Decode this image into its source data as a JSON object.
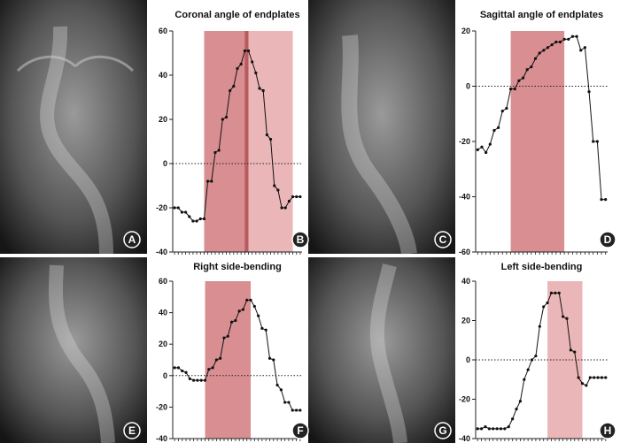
{
  "panel_letters": [
    "A",
    "B",
    "C",
    "D",
    "E",
    "F",
    "G",
    "H"
  ],
  "chart_data": [
    {
      "type": "line",
      "panel": "B",
      "title": "Coronal angle of endplates",
      "ylim": [
        -40,
        60
      ],
      "yticks": [
        "60",
        "40",
        "20",
        "0",
        "-20",
        "-40"
      ],
      "zero_line": "dotted",
      "grid": false,
      "x": [
        1,
        2,
        3,
        4,
        5,
        6,
        7,
        8,
        9,
        10,
        11,
        12,
        13,
        14,
        15,
        16,
        17,
        18,
        19,
        20,
        21,
        22,
        23,
        24,
        25,
        26,
        27,
        28,
        29,
        30,
        31,
        32,
        33,
        34,
        35
      ],
      "values": [
        -20,
        -20,
        -22,
        -22,
        -24,
        -26,
        -26,
        -25,
        -25,
        -8,
        -8,
        5,
        6,
        20,
        21,
        33,
        35,
        43,
        45,
        51,
        51,
        46,
        41,
        34,
        33,
        13,
        11,
        -10,
        -12,
        -20,
        -20,
        -17,
        -15,
        -15,
        -15
      ],
      "shaded_regions": [
        {
          "x_range": [
            9,
            21
          ],
          "color": "#d98f92"
        },
        {
          "x_range": [
            20,
            21
          ],
          "color": "#b85a5e"
        },
        {
          "x_range": [
            21,
            33
          ],
          "color": "#ebb6b8"
        }
      ]
    },
    {
      "type": "line",
      "panel": "D",
      "title": "Sagittal angle of endplates",
      "ylim": [
        -60,
        20
      ],
      "yticks": [
        "20",
        "0",
        "-20",
        "-40",
        "-60"
      ],
      "zero_line": "dotted",
      "grid": false,
      "x": [
        1,
        2,
        3,
        4,
        5,
        6,
        7,
        8,
        9,
        10,
        11,
        12,
        13,
        14,
        15,
        16,
        17,
        18,
        19,
        20,
        21,
        22,
        23,
        24,
        25,
        26,
        27,
        28,
        29,
        30,
        31,
        32
      ],
      "values": [
        -23,
        -22,
        -24,
        -21,
        -16,
        -15,
        -9,
        -8,
        -1,
        -1,
        2,
        3,
        6,
        7,
        10,
        12,
        13,
        14,
        15,
        16,
        16,
        17,
        17,
        18,
        18,
        13,
        14,
        -2,
        -20,
        -20,
        -41,
        -41
      ],
      "shaded_regions": [
        {
          "x_range": [
            9,
            22
          ],
          "color": "#d98f92"
        }
      ]
    },
    {
      "type": "line",
      "panel": "F",
      "title": "Right side-bending",
      "ylim": [
        -40,
        60
      ],
      "yticks": [
        "60",
        "40",
        "20",
        "0",
        "-20",
        "-40"
      ],
      "zero_line": "dotted",
      "grid": false,
      "x": [
        1,
        2,
        3,
        4,
        5,
        6,
        7,
        8,
        9,
        10,
        11,
        12,
        13,
        14,
        15,
        16,
        17,
        18,
        19,
        20,
        21,
        22,
        23,
        24,
        25,
        26,
        27,
        28,
        29,
        30,
        31,
        32,
        33,
        34
      ],
      "values": [
        5,
        5,
        3,
        2,
        -2,
        -3,
        -3,
        -3,
        -3,
        4,
        5,
        10,
        11,
        24,
        25,
        34,
        35,
        41,
        42,
        48,
        48,
        44,
        38,
        30,
        29,
        11,
        10,
        -6,
        -9,
        -17,
        -17,
        -22,
        -22,
        -22
      ],
      "shaded_regions": [
        {
          "x_range": [
            9,
            21
          ],
          "color": "#d98f92"
        }
      ]
    },
    {
      "type": "line",
      "panel": "H",
      "title": "Left side-bending",
      "ylim": [
        -40,
        40
      ],
      "yticks": [
        "40",
        "20",
        "0",
        "-20",
        "-40"
      ],
      "zero_line": "dotted",
      "grid": false,
      "x": [
        1,
        2,
        3,
        4,
        5,
        6,
        7,
        8,
        9,
        10,
        11,
        12,
        13,
        14,
        15,
        16,
        17,
        18,
        19,
        20,
        21,
        22,
        23,
        24,
        25,
        26,
        27,
        28,
        29,
        30,
        31,
        32,
        33,
        34
      ],
      "values": [
        -35,
        -35,
        -34,
        -35,
        -35,
        -35,
        -35,
        -35,
        -34,
        -30,
        -25,
        -21,
        -10,
        -5,
        0,
        2,
        17,
        27,
        29,
        34,
        34,
        34,
        22,
        21,
        5,
        4,
        -9,
        -12,
        -13,
        -9,
        -9,
        -9,
        -9,
        -9
      ],
      "shaded_regions": [
        {
          "x_range": [
            19,
            28
          ],
          "color": "#ebb6b8"
        }
      ]
    }
  ]
}
